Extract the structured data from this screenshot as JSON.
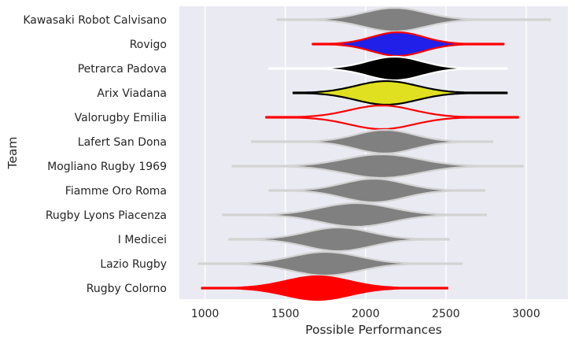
{
  "chart_data": {
    "type": "violin",
    "xlabel": "Possible Performances",
    "ylabel": "Team",
    "xlim": [
      840,
      3260
    ],
    "xticks": [
      1000,
      1500,
      2000,
      2500,
      3000
    ],
    "grid": true,
    "background": "#eaeaf2",
    "teams": [
      {
        "name": "Kawasaki Robot Calvisano",
        "fill": "#808080",
        "edge": "#d3d3d3",
        "min": 1450,
        "max": 3150,
        "peak": 2180,
        "spread": 190,
        "median": 2200
      },
      {
        "name": "Rovigo",
        "fill": "#2020e8",
        "edge": "#ff0000",
        "min": 1670,
        "max": 2860,
        "peak": 2200,
        "spread": 160,
        "median": 2210
      },
      {
        "name": "Petrarca Padova",
        "fill": "#000000",
        "edge": "#ffffff",
        "min": 1400,
        "max": 2880,
        "peak": 2180,
        "spread": 170,
        "median": 2190
      },
      {
        "name": "Arix Viadana",
        "fill": "#e0e020",
        "edge": "#000000",
        "min": 1550,
        "max": 2880,
        "peak": 2130,
        "spread": 190,
        "median": 2140
      },
      {
        "name": "Valorugby Emilia",
        "fill": "#eaeaf2",
        "edge": "#ff0000",
        "min": 1380,
        "max": 2950,
        "peak": 2100,
        "spread": 200,
        "median": 2110
      },
      {
        "name": "Lafert San Dona",
        "fill": "#808080",
        "edge": "#d3d3d3",
        "min": 1290,
        "max": 2790,
        "peak": 2120,
        "spread": 180,
        "median": 2130
      },
      {
        "name": "Mogliano Rugby 1969",
        "fill": "#808080",
        "edge": "#d3d3d3",
        "min": 1170,
        "max": 2980,
        "peak": 2100,
        "spread": 230,
        "median": 2120
      },
      {
        "name": "Fiamme Oro Roma",
        "fill": "#808080",
        "edge": "#d3d3d3",
        "min": 1400,
        "max": 2740,
        "peak": 2050,
        "spread": 190,
        "median": 2060
      },
      {
        "name": "Rugby Lyons Piacenza",
        "fill": "#808080",
        "edge": "#d3d3d3",
        "min": 1110,
        "max": 2750,
        "peak": 1940,
        "spread": 220,
        "median": 1950
      },
      {
        "name": "I Medicei",
        "fill": "#808080",
        "edge": "#d3d3d3",
        "min": 1150,
        "max": 2520,
        "peak": 1830,
        "spread": 200,
        "median": 1840
      },
      {
        "name": "Lazio Rugby",
        "fill": "#808080",
        "edge": "#d3d3d3",
        "min": 960,
        "max": 2600,
        "peak": 1750,
        "spread": 210,
        "median": 1760
      },
      {
        "name": "Rugby Colorno",
        "fill": "#ff0000",
        "edge": "#ff0000",
        "min": 980,
        "max": 2510,
        "peak": 1700,
        "spread": 200,
        "median": 1710
      }
    ]
  }
}
